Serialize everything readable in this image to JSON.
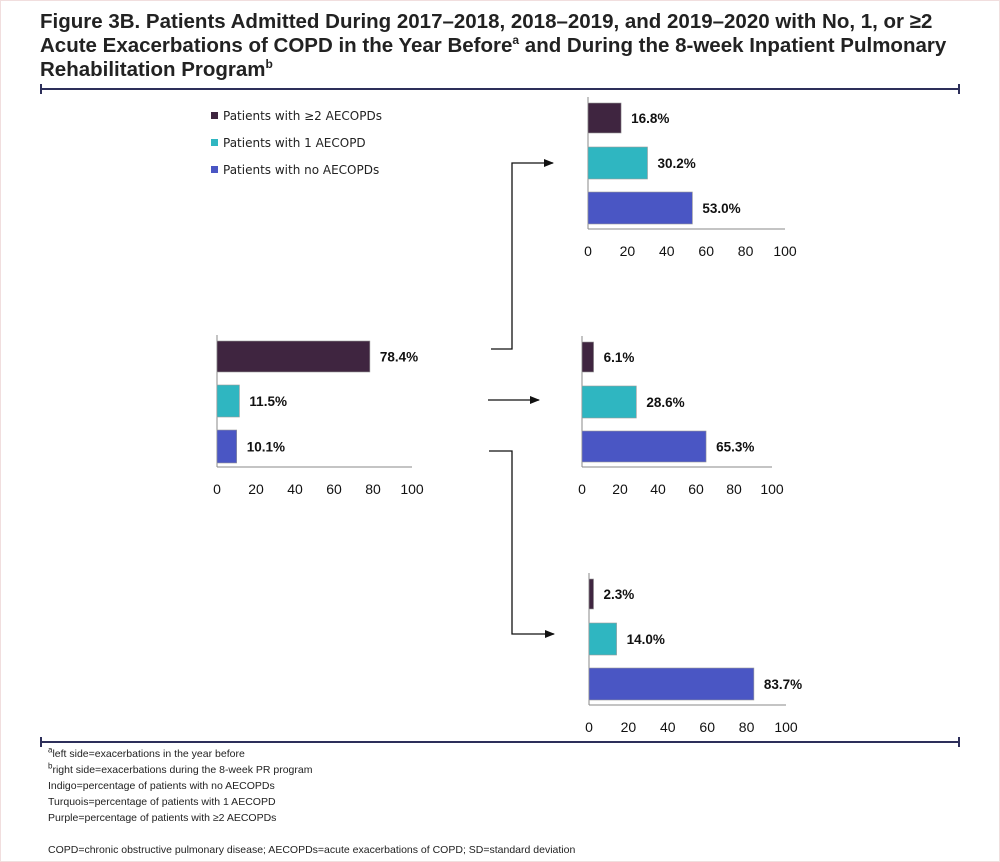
{
  "figure": {
    "title_line1": "Figure 3B. Patients Admitted During 2017–2018, 2018–2019, and 2019–2020 with No, 1, or ≥2",
    "title_line2_pre": "Acute Exacerbations of COPD in the Year Before",
    "title_line2_sup": "a",
    "title_line2_post": " and During the 8-week Inpatient Pulmonary",
    "title_line3": "Rehabilitation Program",
    "title_line3_sup": "b"
  },
  "colors": {
    "ge2": "#3f2540",
    "one": "#2fb6c1",
    "none": "#4a56c4",
    "axis": "#8a8a8a",
    "arrow": "#111111"
  },
  "chart_data": [
    {
      "type": "bar",
      "orientation": "horizontal",
      "panel": "year-before",
      "categories": [
        "Patients with ≥2 AECOPDs",
        "Patients with 1 AECOPD",
        "Patients with no AECOPDs"
      ],
      "values": [
        78.4,
        11.5,
        10.1
      ],
      "value_labels": [
        "78.4%",
        "11.5%",
        "10.1%"
      ],
      "xlim": [
        0,
        100
      ],
      "xticks": [
        "0",
        "20",
        "40",
        "60",
        "80",
        "100"
      ]
    },
    {
      "type": "bar",
      "orientation": "horizontal",
      "panel": "during-pr-group-1",
      "categories": [
        "Patients with ≥2 AECOPDs",
        "Patients with 1 AECOPD",
        "Patients with no AECOPDs"
      ],
      "values": [
        16.8,
        30.2,
        53.0
      ],
      "value_labels": [
        "16.8%",
        "30.2%",
        "53.0%"
      ],
      "xlim": [
        0,
        100
      ],
      "xticks": [
        "0",
        "20",
        "40",
        "60",
        "80",
        "100"
      ]
    },
    {
      "type": "bar",
      "orientation": "horizontal",
      "panel": "during-pr-group-2",
      "categories": [
        "Patients with ≥2 AECOPDs",
        "Patients with 1 AECOPD",
        "Patients with no AECOPDs"
      ],
      "values": [
        6.1,
        28.6,
        65.3
      ],
      "value_labels": [
        "6.1%",
        "28.6%",
        "65.3%"
      ],
      "xlim": [
        0,
        100
      ],
      "xticks": [
        "0",
        "20",
        "40",
        "60",
        "80",
        "100"
      ]
    },
    {
      "type": "bar",
      "orientation": "horizontal",
      "panel": "during-pr-group-3",
      "categories": [
        "Patients with ≥2 AECOPDs",
        "Patients with 1 AECOPD",
        "Patients with no AECOPDs"
      ],
      "values": [
        2.3,
        14.0,
        83.7
      ],
      "value_labels": [
        "2.3%",
        "14.0%",
        "83.7%"
      ],
      "xlim": [
        0,
        100
      ],
      "xticks": [
        "0",
        "20",
        "40",
        "60",
        "80",
        "100"
      ]
    }
  ],
  "legend": {
    "position": "top-left",
    "items": [
      {
        "label": "Patients with ≥2 AECOPDs",
        "color": "#3f2540"
      },
      {
        "label": "Patients with 1 AECOPD",
        "color": "#2fb6c1"
      },
      {
        "label": "Patients with no AECOPDs",
        "color": "#4a56c4"
      }
    ]
  },
  "footnotes": {
    "a_sup": "a",
    "a_text": "left side=exacerbations in the year before",
    "b_sup": "b",
    "b_text": "right side=exacerbations during the 8-week PR program",
    "indigo": "Indigo=percentage of patients with no AECOPDs",
    "turquois": "Turquois=percentage of patients with 1 AECOPD",
    "purple": "Purple=percentage of patients with ≥2 AECOPDs",
    "abbreviations": "COPD=chronic obstructive pulmonary disease; AECOPDs=acute exacerbations of COPD; SD=standard deviation"
  }
}
